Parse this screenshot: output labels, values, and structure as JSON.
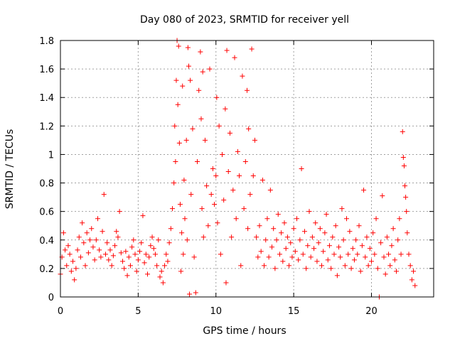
{
  "chart_data": {
    "type": "scatter",
    "title": "Day 080 of 2023, SRMTID for receiver yell",
    "xlabel": "GPS time / hours",
    "ylabel": "SRMTID / TECUs",
    "xlim": [
      0,
      24
    ],
    "ylim": [
      0,
      1.8
    ],
    "xticks": [
      0,
      5,
      10,
      15,
      20
    ],
    "xtick_labels": [
      "0",
      "5",
      "10",
      "15",
      "20"
    ],
    "yticks": [
      0,
      0.2,
      0.4,
      0.6,
      0.8,
      1,
      1.2,
      1.4,
      1.6,
      1.8
    ],
    "ytick_labels": [
      "0",
      "0.2",
      "0.4",
      "0.6",
      "0.8",
      "1",
      "1.2",
      "1.4",
      "1.6",
      "1.8"
    ],
    "grid": true,
    "marker": "+",
    "color": "#ff0000",
    "series": [
      {
        "name": "SRMTID",
        "points": [
          [
            0.0,
            0.16
          ],
          [
            0.1,
            0.28
          ],
          [
            0.2,
            0.45
          ],
          [
            0.3,
            0.33
          ],
          [
            0.4,
            0.22
          ],
          [
            0.5,
            0.36
          ],
          [
            0.6,
            0.3
          ],
          [
            0.7,
            0.18
          ],
          [
            0.8,
            0.25
          ],
          [
            0.9,
            0.12
          ],
          [
            1.0,
            0.2
          ],
          [
            1.1,
            0.33
          ],
          [
            1.2,
            0.42
          ],
          [
            1.3,
            0.28
          ],
          [
            1.4,
            0.52
          ],
          [
            1.5,
            0.38
          ],
          [
            1.6,
            0.22
          ],
          [
            1.7,
            0.45
          ],
          [
            1.8,
            0.31
          ],
          [
            1.9,
            0.4
          ],
          [
            2.0,
            0.48
          ],
          [
            2.1,
            0.35
          ],
          [
            2.2,
            0.26
          ],
          [
            2.3,
            0.4
          ],
          [
            2.4,
            0.55
          ],
          [
            2.5,
            0.33
          ],
          [
            2.6,
            0.28
          ],
          [
            2.7,
            0.46
          ],
          [
            2.8,
            0.72
          ],
          [
            2.9,
            0.3
          ],
          [
            3.0,
            0.38
          ],
          [
            3.1,
            0.26
          ],
          [
            3.2,
            0.33
          ],
          [
            3.3,
            0.22
          ],
          [
            3.4,
            0.29
          ],
          [
            3.5,
            0.36
          ],
          [
            3.6,
            0.46
          ],
          [
            3.7,
            0.42
          ],
          [
            3.8,
            0.6
          ],
          [
            3.9,
            0.31
          ],
          [
            4.0,
            0.25
          ],
          [
            4.1,
            0.2
          ],
          [
            4.2,
            0.32
          ],
          [
            4.3,
            0.15
          ],
          [
            4.4,
            0.28
          ],
          [
            4.5,
            0.22
          ],
          [
            4.6,
            0.35
          ],
          [
            4.7,
            0.4
          ],
          [
            4.8,
            0.3
          ],
          [
            4.9,
            0.18
          ],
          [
            5.0,
            0.26
          ],
          [
            5.1,
            0.32
          ],
          [
            5.2,
            0.38
          ],
          [
            5.3,
            0.57
          ],
          [
            5.4,
            0.24
          ],
          [
            5.5,
            0.3
          ],
          [
            5.6,
            0.16
          ],
          [
            5.7,
            0.28
          ],
          [
            5.8,
            0.36
          ],
          [
            5.9,
            0.42
          ],
          [
            6.0,
            0.34
          ],
          [
            6.1,
            0.3
          ],
          [
            6.2,
            0.22
          ],
          [
            6.3,
            0.4
          ],
          [
            6.4,
            0.14
          ],
          [
            6.5,
            0.18
          ],
          [
            6.6,
            0.1
          ],
          [
            6.7,
            0.22
          ],
          [
            6.8,
            0.3
          ],
          [
            6.9,
            0.25
          ],
          [
            7.0,
            0.38
          ],
          [
            7.1,
            0.48
          ],
          [
            7.2,
            0.62
          ],
          [
            7.3,
            0.8
          ],
          [
            7.35,
            1.2
          ],
          [
            7.4,
            0.95
          ],
          [
            7.45,
            1.52
          ],
          [
            7.5,
            1.8
          ],
          [
            7.55,
            1.35
          ],
          [
            7.6,
            1.76
          ],
          [
            7.65,
            1.08
          ],
          [
            7.7,
            0.65
          ],
          [
            7.75,
            0.18
          ],
          [
            7.8,
            0.45
          ],
          [
            7.85,
            1.48
          ],
          [
            7.9,
            0.3
          ],
          [
            7.95,
            0.82
          ],
          [
            8.0,
            0.55
          ],
          [
            8.1,
            1.1
          ],
          [
            8.15,
            0.4
          ],
          [
            8.2,
            1.75
          ],
          [
            8.25,
            1.62
          ],
          [
            8.3,
            0.02
          ],
          [
            8.35,
            1.52
          ],
          [
            8.4,
            0.72
          ],
          [
            8.5,
            1.18
          ],
          [
            8.6,
            0.28
          ],
          [
            8.7,
            0.03
          ],
          [
            8.8,
            0.95
          ],
          [
            8.9,
            1.45
          ],
          [
            9.0,
            1.72
          ],
          [
            9.05,
            1.25
          ],
          [
            9.1,
            0.62
          ],
          [
            9.15,
            1.58
          ],
          [
            9.2,
            0.42
          ],
          [
            9.3,
            1.1
          ],
          [
            9.4,
            0.78
          ],
          [
            9.5,
            0.5
          ],
          [
            9.6,
            1.6
          ],
          [
            9.7,
            0.72
          ],
          [
            9.8,
            0.9
          ],
          [
            9.9,
            0.65
          ],
          [
            10.0,
            0.85
          ],
          [
            10.05,
            1.4
          ],
          [
            10.1,
            0.52
          ],
          [
            10.2,
            1.2
          ],
          [
            10.3,
            0.3
          ],
          [
            10.4,
            1.0
          ],
          [
            10.5,
            0.68
          ],
          [
            10.6,
            1.32
          ],
          [
            10.65,
            0.1
          ],
          [
            10.7,
            1.73
          ],
          [
            10.8,
            0.88
          ],
          [
            10.9,
            1.15
          ],
          [
            11.0,
            0.42
          ],
          [
            11.1,
            0.75
          ],
          [
            11.2,
            1.68
          ],
          [
            11.3,
            0.55
          ],
          [
            11.4,
            1.02
          ],
          [
            11.5,
            0.85
          ],
          [
            11.6,
            0.22
          ],
          [
            11.7,
            1.55
          ],
          [
            11.8,
            0.62
          ],
          [
            11.9,
            0.95
          ],
          [
            12.0,
            1.45
          ],
          [
            12.05,
            0.48
          ],
          [
            12.1,
            1.18
          ],
          [
            12.2,
            0.72
          ],
          [
            12.3,
            1.74
          ],
          [
            12.4,
            0.85
          ],
          [
            12.5,
            1.1
          ],
          [
            12.6,
            0.42
          ],
          [
            12.7,
            0.28
          ],
          [
            12.8,
            0.5
          ],
          [
            12.9,
            0.32
          ],
          [
            13.0,
            0.82
          ],
          [
            13.1,
            0.22
          ],
          [
            13.2,
            0.4
          ],
          [
            13.3,
            0.55
          ],
          [
            13.4,
            0.28
          ],
          [
            13.5,
            0.75
          ],
          [
            13.6,
            0.35
          ],
          [
            13.7,
            0.48
          ],
          [
            13.8,
            0.2
          ],
          [
            13.9,
            0.4
          ],
          [
            14.0,
            0.58
          ],
          [
            14.1,
            0.3
          ],
          [
            14.2,
            0.45
          ],
          [
            14.3,
            0.25
          ],
          [
            14.4,
            0.52
          ],
          [
            14.5,
            0.34
          ],
          [
            14.6,
            0.42
          ],
          [
            14.7,
            0.22
          ],
          [
            14.8,
            0.38
          ],
          [
            14.9,
            0.28
          ],
          [
            15.0,
            0.48
          ],
          [
            15.1,
            0.32
          ],
          [
            15.2,
            0.55
          ],
          [
            15.3,
            0.26
          ],
          [
            15.4,
            0.4
          ],
          [
            15.5,
            0.9
          ],
          [
            15.6,
            0.3
          ],
          [
            15.7,
            0.46
          ],
          [
            15.8,
            0.2
          ],
          [
            15.9,
            0.36
          ],
          [
            16.0,
            0.6
          ],
          [
            16.1,
            0.28
          ],
          [
            16.2,
            0.42
          ],
          [
            16.3,
            0.34
          ],
          [
            16.4,
            0.52
          ],
          [
            16.5,
            0.25
          ],
          [
            16.6,
            0.38
          ],
          [
            16.7,
            0.48
          ],
          [
            16.8,
            0.22
          ],
          [
            16.9,
            0.32
          ],
          [
            17.0,
            0.45
          ],
          [
            17.1,
            0.58
          ],
          [
            17.2,
            0.26
          ],
          [
            17.3,
            0.36
          ],
          [
            17.4,
            0.2
          ],
          [
            17.5,
            0.42
          ],
          [
            17.6,
            0.3
          ],
          [
            17.7,
            0.5
          ],
          [
            17.8,
            0.15
          ],
          [
            17.9,
            0.35
          ],
          [
            18.0,
            0.28
          ],
          [
            18.1,
            0.62
          ],
          [
            18.2,
            0.4
          ],
          [
            18.3,
            0.22
          ],
          [
            18.4,
            0.55
          ],
          [
            18.5,
            0.3
          ],
          [
            18.6,
            0.46
          ],
          [
            18.7,
            0.2
          ],
          [
            18.8,
            0.34
          ],
          [
            18.9,
            0.26
          ],
          [
            19.0,
            0.4
          ],
          [
            19.1,
            0.3
          ],
          [
            19.2,
            0.5
          ],
          [
            19.3,
            0.18
          ],
          [
            19.4,
            0.36
          ],
          [
            19.5,
            0.75
          ],
          [
            19.6,
            0.28
          ],
          [
            19.7,
            0.42
          ],
          [
            19.8,
            0.22
          ],
          [
            19.9,
            0.34
          ],
          [
            20.0,
            0.25
          ],
          [
            20.1,
            0.45
          ],
          [
            20.2,
            0.3
          ],
          [
            20.3,
            0.55
          ],
          [
            20.4,
            0.2
          ],
          [
            20.5,
            0.0
          ],
          [
            20.6,
            0.38
          ],
          [
            20.7,
            0.71
          ],
          [
            20.8,
            0.28
          ],
          [
            20.9,
            0.16
          ],
          [
            21.0,
            0.42
          ],
          [
            21.1,
            0.3
          ],
          [
            21.2,
            0.22
          ],
          [
            21.3,
            0.36
          ],
          [
            21.4,
            0.48
          ],
          [
            21.5,
            0.26
          ],
          [
            21.6,
            0.18
          ],
          [
            21.7,
            0.4
          ],
          [
            21.8,
            0.55
          ],
          [
            21.9,
            0.3
          ],
          [
            22.0,
            1.16
          ],
          [
            22.05,
            0.98
          ],
          [
            22.1,
            0.92
          ],
          [
            22.15,
            0.78
          ],
          [
            22.2,
            0.7
          ],
          [
            22.25,
            0.6
          ],
          [
            22.3,
            0.45
          ],
          [
            22.4,
            0.3
          ],
          [
            22.5,
            0.22
          ],
          [
            22.6,
            0.12
          ],
          [
            22.7,
            0.18
          ],
          [
            22.8,
            0.08
          ]
        ]
      }
    ]
  }
}
